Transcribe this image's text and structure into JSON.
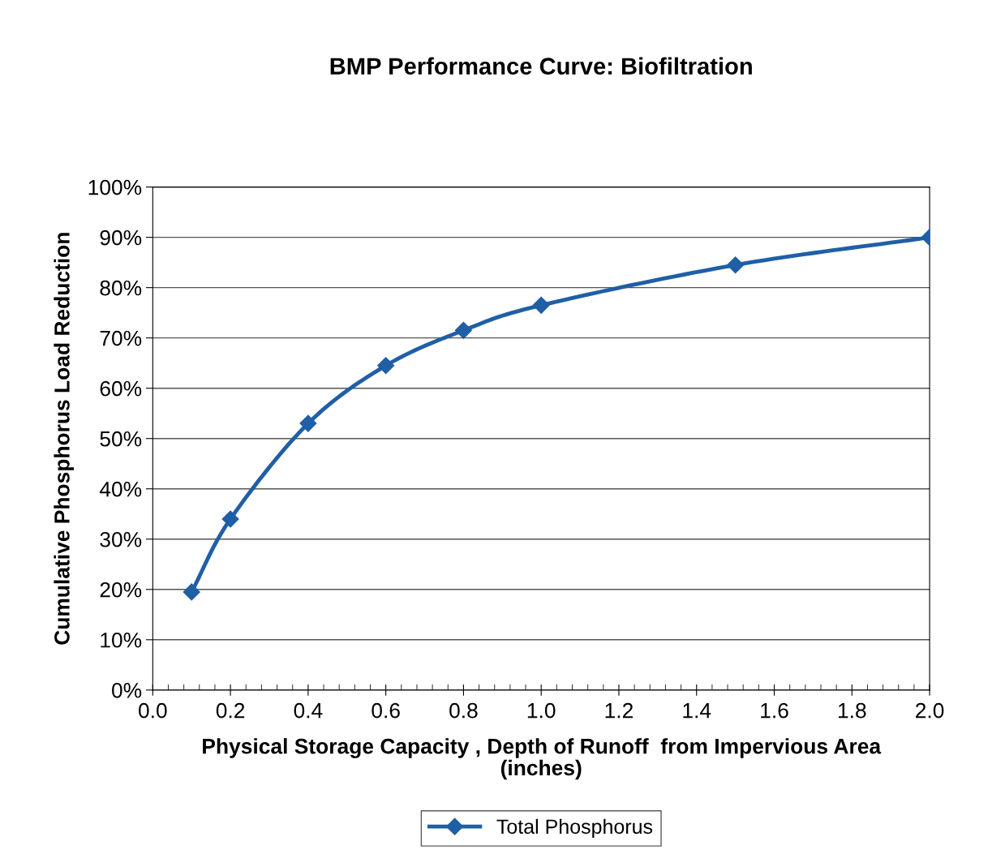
{
  "chart_data": {
    "type": "line",
    "title": "BMP Performance Curve: Biofiltration",
    "xlabel": "Physical Storage Capacity , Depth of Runoff  from Impervious Area\n(inches)",
    "ylabel": "Cumulative Phosphorus Load Reduction",
    "x": [
      0.1,
      0.2,
      0.4,
      0.6,
      0.8,
      1.0,
      1.5,
      2.0
    ],
    "series": [
      {
        "name": "Total Phosphorus",
        "color": "#1f5fa6",
        "values": [
          19.5,
          34,
          53,
          64.5,
          71.5,
          76.5,
          84.5,
          90
        ]
      }
    ],
    "xlim": [
      0.0,
      2.0
    ],
    "xticks": [
      {
        "value": 0.0,
        "label": "0.0"
      },
      0.2,
      0.4,
      0.6,
      0.8,
      {
        "value": 1.0,
        "label": "1.0"
      },
      1.2,
      1.4,
      1.6,
      1.8,
      {
        "value": 2.0,
        "label": "2.0"
      }
    ],
    "ylim": [
      0,
      100
    ],
    "yticks": [
      {
        "value": 0,
        "label": "0%"
      },
      {
        "value": 10,
        "label": "10%"
      },
      {
        "value": 20,
        "label": "20%"
      },
      {
        "value": 30,
        "label": "30%"
      },
      {
        "value": 40,
        "label": "40%"
      },
      {
        "value": 50,
        "label": "50%"
      },
      {
        "value": 60,
        "label": "60%"
      },
      {
        "value": 70,
        "label": "70%"
      },
      {
        "value": 80,
        "label": "80%"
      },
      {
        "value": 90,
        "label": "90%"
      },
      {
        "value": 100,
        "label": "100%"
      }
    ],
    "grid": "y",
    "legend": "bottom",
    "marker": "diamond",
    "line_style": "solid"
  }
}
